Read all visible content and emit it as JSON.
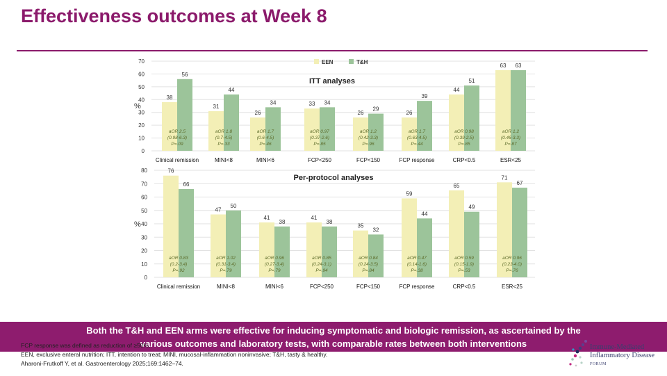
{
  "title": "Effectiveness outcomes at Week 8",
  "colors": {
    "een": "#f3efb6",
    "th": "#9cc49a",
    "accent": "#8b1a6b",
    "annotation": "#5c6b2a"
  },
  "chart_data": [
    {
      "type": "bar",
      "title": "ITT analyses",
      "ylabel": "%",
      "ylim": [
        0,
        70
      ],
      "yticks": [
        0,
        10,
        20,
        30,
        40,
        50,
        60,
        70
      ],
      "grid": true,
      "legend": "top-center",
      "categories": [
        "Clinical remission",
        "MINI<8",
        "MINI<6",
        "FCP<250",
        "FCP<150",
        "FCP response",
        "CRP<0.5",
        "ESR<25"
      ],
      "series": [
        {
          "name": "EEN",
          "values": [
            38,
            31,
            26,
            33,
            26,
            26,
            44,
            63
          ]
        },
        {
          "name": "T&H",
          "values": [
            56,
            44,
            34,
            34,
            29,
            39,
            51,
            63
          ]
        }
      ],
      "annotations": [
        [
          "aOR 2.5",
          "(0.98-6.3)",
          "P=.09"
        ],
        [
          "aOR 1.8",
          "(0.7-4.5)",
          "P=.33"
        ],
        [
          "aOR 1.7",
          "(0.6-4.5)",
          "P=.46"
        ],
        [
          "aOR 0.97",
          "(0.37-2.6)",
          "P=.85"
        ],
        [
          "aOR 1.2",
          "(0.42-3.3)",
          "P=.96"
        ],
        [
          "aOR 1.7",
          "(0.63-4.5)",
          "P=.44"
        ],
        [
          "aOR 0.98",
          "(0.39-2.5)",
          "P=.85"
        ],
        [
          "aOR 1.2",
          "(0.46-3.3)",
          "P=.87"
        ]
      ]
    },
    {
      "type": "bar",
      "title": "Per-protocol analyses",
      "ylabel": "%",
      "ylim": [
        0,
        80
      ],
      "yticks": [
        0,
        10,
        20,
        30,
        40,
        50,
        60,
        70,
        80
      ],
      "grid": true,
      "categories": [
        "Clinical remission",
        "MINI<8",
        "MINI<6",
        "FCP<250",
        "FCP<150",
        "FCP response",
        "CRP<0.5",
        "ESR<25"
      ],
      "series": [
        {
          "name": "EEN",
          "values": [
            76,
            47,
            41,
            41,
            35,
            59,
            65,
            71
          ]
        },
        {
          "name": "T&H",
          "values": [
            66,
            50,
            38,
            38,
            32,
            44,
            49,
            67
          ]
        }
      ],
      "annotations": [
        [
          "aOR 0.83",
          "(0.2-3.4)",
          "P=.92"
        ],
        [
          "aOR 1.02",
          "(0.31-3.4)",
          "P=.79"
        ],
        [
          "aOR 0.96",
          "(0.27-3.4)",
          "P=.79"
        ],
        [
          "aOR 0.85",
          "(0.24-3.1)",
          "P=.94"
        ],
        [
          "aOR 0.84",
          "(0.24-3.5)",
          "P=.84"
        ],
        [
          "aOR 0.47",
          "(0.14-1.6)",
          "P=.38"
        ],
        [
          "aOR 0.59",
          "(0.15-1.9)",
          "P=.53"
        ],
        [
          "aOR 0.96",
          "(0.23-4.0)",
          "P=.76"
        ]
      ]
    }
  ],
  "banner": {
    "line1": "Both the T&H and EEN arms were effective for inducing symptomatic and biologic remission, as ascertained by the",
    "line2": "various outcomes and laboratory tests, with comparable rates between both interventions"
  },
  "footnotes": [
    "FCP response was defined as reduction of ≥50%.",
    "EEN, exclusive enteral nutrition; ITT, intention to treat; MINI, mucosal-inflammation noninvasive; T&H, tasty & healthy.",
    "Aharoni-Frutkoff Y, et al. Gastroenterology 2025;169:1462–74."
  ],
  "logo": {
    "line1": "Immune-Mediated",
    "line2": "Inflammatory Disease",
    "line3": "FORUM"
  }
}
